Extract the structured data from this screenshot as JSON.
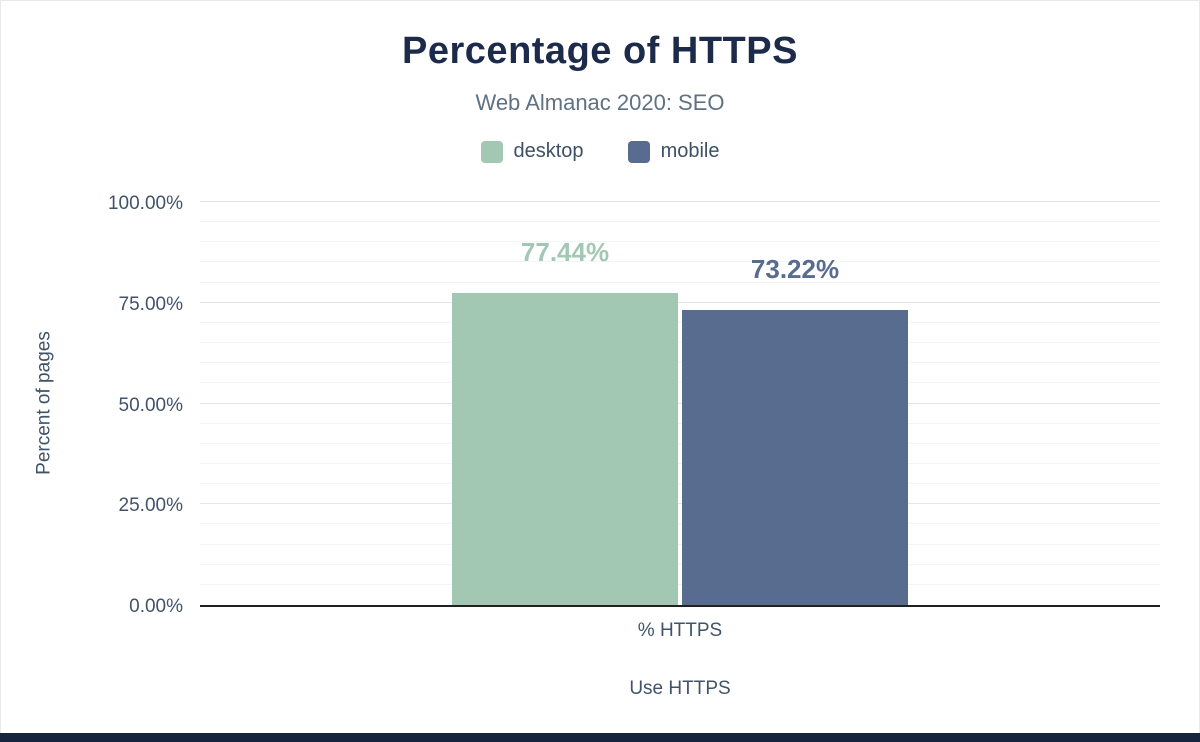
{
  "chart_data": {
    "type": "bar",
    "title": "Percentage of HTTPS",
    "subtitle": "Web Almanac 2020: SEO",
    "categories": [
      "% HTTPS"
    ],
    "series": [
      {
        "name": "desktop",
        "values": [
          77.44
        ],
        "label": "77.44%",
        "color": "#a2c8b4"
      },
      {
        "name": "mobile",
        "values": [
          73.22
        ],
        "label": "73.22%",
        "color": "#586c90"
      }
    ],
    "xlabel": "Use HTTPS",
    "ylabel": "Percent of pages",
    "ylim": [
      0,
      100
    ],
    "yticks": [
      "100.00%",
      "75.00%",
      "50.00%",
      "25.00%",
      "0.00%"
    ],
    "grid": true,
    "minor_grid_step": 5,
    "major_grid_step": 25,
    "legend_position": "top"
  },
  "colors": {
    "title": "#1c2b49",
    "subtitle": "#5f7183",
    "axis_text": "#41536a",
    "legend_text": "#3d5065",
    "footer": "#16243e",
    "axis_line": "#212121"
  }
}
